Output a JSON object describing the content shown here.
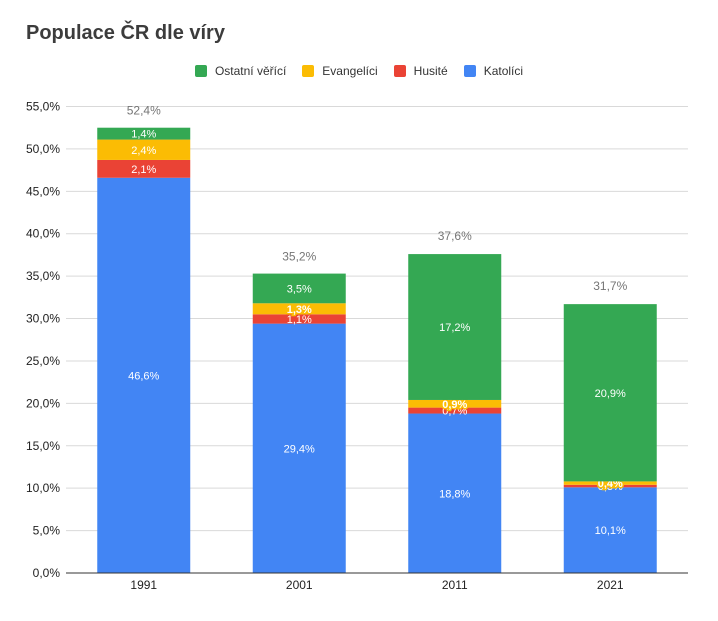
{
  "chart_data": {
    "type": "bar",
    "stacked": true,
    "title": "Populace ČR dle víry",
    "categories": [
      "1991",
      "2001",
      "2011",
      "2021"
    ],
    "series": [
      {
        "name": "Katolíci",
        "color": "#4285f4",
        "values": [
          46.6,
          29.4,
          18.8,
          10.1
        ],
        "labels": [
          "46,6%",
          "29,4%",
          "18,8%",
          "10,1%"
        ]
      },
      {
        "name": "Husité",
        "color": "#ea4335",
        "values": [
          2.1,
          1.1,
          0.7,
          0.3
        ],
        "labels": [
          "2,1%",
          "1,1%",
          "0,7%",
          "0,3%"
        ]
      },
      {
        "name": "Evangelíci",
        "color": "#fbbc04",
        "values": [
          2.4,
          1.3,
          0.9,
          0.4
        ],
        "labels": [
          "2,4%",
          "1,3%",
          "0,9%",
          "0,4%"
        ]
      },
      {
        "name": "Ostatní věřící",
        "color": "#34a853",
        "values": [
          1.4,
          3.5,
          17.2,
          20.9
        ],
        "labels": [
          "1,4%",
          "3,5%",
          "17,2%",
          "20,9%"
        ]
      }
    ],
    "totals": [
      "52,4%",
      "35,2%",
      "37,6%",
      "31,7%"
    ],
    "total_values": [
      52.4,
      35.2,
      37.6,
      31.7
    ],
    "legend_order": [
      "Ostatní věřící",
      "Evangelíci",
      "Husité",
      "Katolíci"
    ],
    "y_ticks": [
      "0,0%",
      "5,0%",
      "10,0%",
      "15,0%",
      "20,0%",
      "25,0%",
      "30,0%",
      "35,0%",
      "40,0%",
      "45,0%",
      "50,0%",
      "55,0%"
    ],
    "ylim": [
      0,
      55
    ],
    "xlabel": "",
    "ylabel": "",
    "grid": true,
    "legend_position": "top"
  }
}
